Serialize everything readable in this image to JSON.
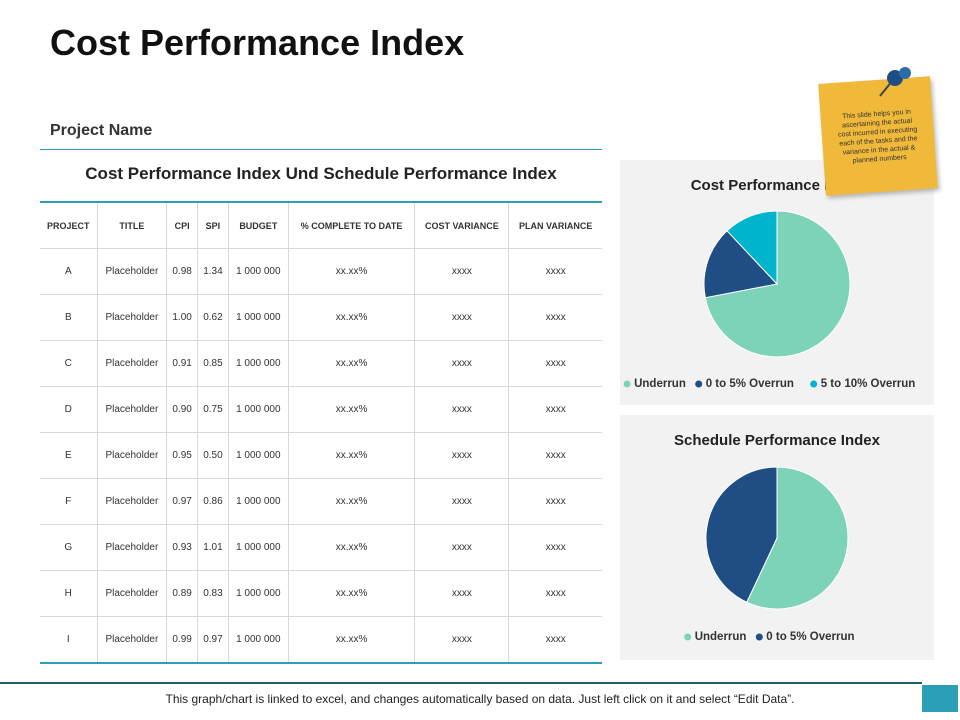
{
  "title": "Cost Performance Index",
  "project_label": "Project Name",
  "table": {
    "caption": "Cost Performance Index Und Schedule Performance Index",
    "header": [
      "PROJECT",
      "TITLE",
      "CPI",
      "SPI",
      "BUDGET",
      "% COMPLETE TO DATE",
      "COST VARIANCE",
      "PLAN VARIANCE"
    ],
    "rows": [
      [
        "A",
        "Placeholder",
        "0.98",
        "1.34",
        "1 000 000",
        "xx.xx%",
        "xxxx",
        "xxxx"
      ],
      [
        "B",
        "Placeholder",
        "1.00",
        "0.62",
        "1 000 000",
        "xx.xx%",
        "xxxx",
        "xxxx"
      ],
      [
        "C",
        "Placeholder",
        "0.91",
        "0.85",
        "1 000 000",
        "xx.xx%",
        "xxxx",
        "xxxx"
      ],
      [
        "D",
        "Placeholder",
        "0.90",
        "0.75",
        "1 000 000",
        "xx.xx%",
        "xxxx",
        "xxxx"
      ],
      [
        "E",
        "Placeholder",
        "0.95",
        "0.50",
        "1 000 000",
        "xx.xx%",
        "xxxx",
        "xxxx"
      ],
      [
        "F",
        "Placeholder",
        "0.97",
        "0.86",
        "1 000 000",
        "xx.xx%",
        "xxxx",
        "xxxx"
      ],
      [
        "G",
        "Placeholder",
        "0.93",
        "1.01",
        "1 000 000",
        "xx.xx%",
        "xxxx",
        "xxxx"
      ],
      [
        "H",
        "Placeholder",
        "0.89",
        "0.83",
        "1 000 000",
        "xx.xx%",
        "xxxx",
        "xxxx"
      ],
      [
        "I",
        "Placeholder",
        "0.99",
        "0.97",
        "1 000 000",
        "xx.xx%",
        "xxxx",
        "xxxx"
      ]
    ]
  },
  "note": "This slide helps you in ascertaining the actual cost incurred in executing each of the tasks and the variance in the actual & planned numbers",
  "footer": "This graph/chart is linked to excel, and changes automatically based on data. Just left click on it and select “Edit Data”.",
  "chart_data": [
    {
      "type": "pie",
      "title": "Cost Performance Index",
      "categories": [
        "Underrun",
        "0 to 5% Overrun",
        "5 to 10% Overrun"
      ],
      "values": [
        72,
        16,
        12
      ],
      "colors": [
        "#7dd3b8",
        "#1f4e85",
        "#00b4cc"
      ],
      "legend": "bottom"
    },
    {
      "type": "pie",
      "title": "Schedule Performance Index",
      "categories": [
        "Underrun",
        "0 to 5% Overrun"
      ],
      "values": [
        57,
        43
      ],
      "colors": [
        "#7dd3b8",
        "#1f4e85"
      ],
      "legend": "bottom"
    }
  ]
}
